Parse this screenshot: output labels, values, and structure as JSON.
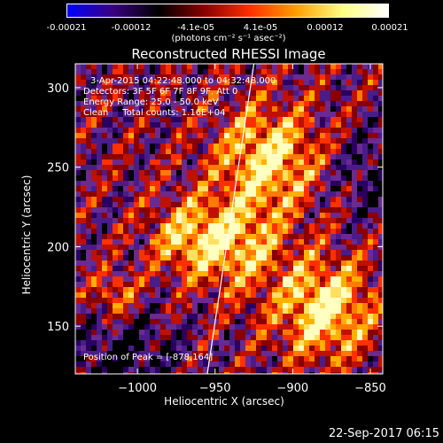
{
  "colorbar": {
    "tick_labels": [
      "-0.00021",
      "-0.00012",
      "-4.1e-05",
      "4.1e-05",
      "0.00012",
      "0.00021"
    ],
    "units_label": "(photons cm⁻² s⁻¹ asec⁻²)",
    "colors": [
      "#0000ff",
      "#3a0080",
      "#000000",
      "#8a0000",
      "#ff3000",
      "#ffa000",
      "#ffff80",
      "#ffffff"
    ]
  },
  "chart_data": {
    "type": "heatmap",
    "title": "Reconstructed RHESSI Image",
    "xlabel": "Heliocentric X (arcsec)",
    "ylabel": "Heliocentric Y (arcsec)",
    "xlim": [
      -1040,
      -842
    ],
    "ylim": [
      120,
      315
    ],
    "x_ticks": [
      -1000,
      -950,
      -900,
      -850
    ],
    "x_tick_labels": [
      "−1000",
      "−950",
      "−900",
      "−850"
    ],
    "y_ticks": [
      150,
      200,
      250,
      300
    ],
    "y_tick_labels": [
      "150",
      "200",
      "250",
      "300"
    ],
    "annotations": [
      "3-Apr-2015 04:22:48.000 to 04:32:48.000",
      "Detectors: 3F 5F 6F 7F 8F 9F, Att 0",
      "Energy Range: 25.0 - 50.0 keV",
      "Clean     Total counts: 1.16E+04"
    ],
    "peak_label": "Position of Peak = [-878,164]",
    "peak_position": [
      -878,
      164
    ],
    "limb_line": [
      [
        -955,
        120
      ],
      [
        -925,
        315
      ]
    ]
  },
  "timestamp": "22-Sep-2017 06:15"
}
